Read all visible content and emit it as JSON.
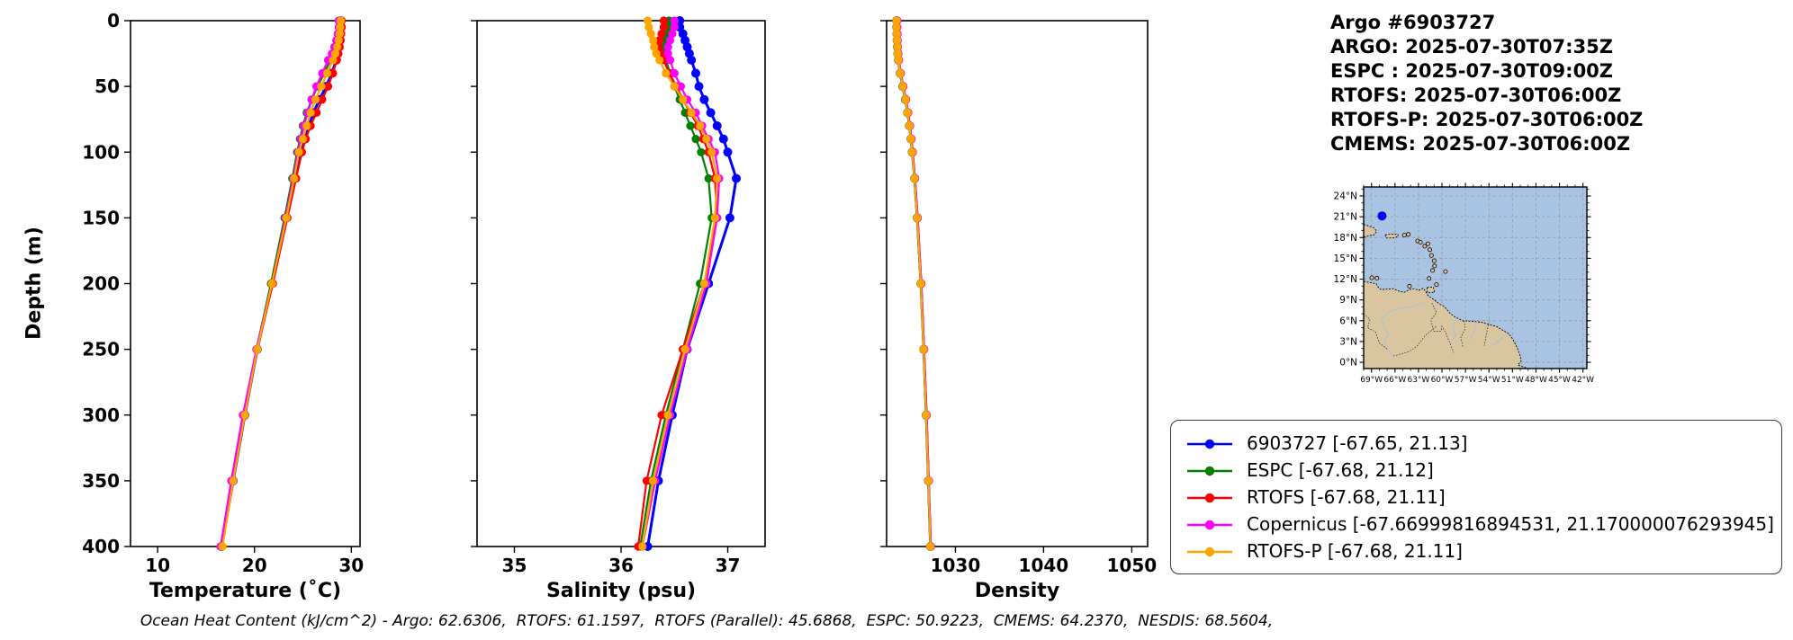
{
  "header": {
    "title": "Argo #6903727",
    "lines": [
      "ARGO: 2025-07-30T07:35Z",
      "ESPC : 2025-07-30T09:00Z",
      "RTOFS: 2025-07-30T06:00Z",
      "RTOFS-P: 2025-07-30T06:00Z",
      "CMEMS: 2025-07-30T06:00Z"
    ]
  },
  "footer": {
    "ohc_text": "Ocean Heat Content (kJ/cm^2) - Argo: 62.6306,  RTOFS: 61.1597,  RTOFS (Parallel): 45.6868,  ESPC: 50.9223,  CMEMS: 64.2370,  NESDIS: 68.5604,"
  },
  "legend": {
    "entries": [
      {
        "label": "6903727 [-67.65, 21.13]",
        "color": "#0000ff"
      },
      {
        "label": "ESPC [-67.68, 21.12]",
        "color": "#008000"
      },
      {
        "label": "RTOFS [-67.68, 21.11]",
        "color": "#ff0000"
      },
      {
        "label": "Copernicus [-67.66999816894531, 21.170000076293945]",
        "color": "#ff00ff"
      },
      {
        "label": "RTOFS-P [-67.68, 21.11]",
        "color": "#ffa500"
      }
    ]
  },
  "chart_data": [
    {
      "type": "line",
      "xlabel": "Temperature (˚C)",
      "ylabel": "Depth (m)",
      "xlim": [
        7.2,
        30.9
      ],
      "ylim": [
        400,
        0
      ],
      "xticks": [
        10,
        20,
        30
      ],
      "yticks": [
        0,
        50,
        100,
        150,
        200,
        250,
        300,
        350,
        400
      ],
      "depths": [
        0,
        5,
        10,
        15,
        20,
        25,
        30,
        40,
        50,
        60,
        70,
        80,
        90,
        100,
        120,
        150,
        200,
        250,
        300,
        350,
        400
      ],
      "series": [
        {
          "name": "6903727",
          "color": "#0000ff",
          "values": [
            28.9,
            28.9,
            28.85,
            28.8,
            28.7,
            28.6,
            28.45,
            28.0,
            27.4,
            26.7,
            26.1,
            25.6,
            25.2,
            24.8,
            24.2,
            23.3,
            21.8,
            20.3,
            19.0,
            17.8,
            16.6
          ]
        },
        {
          "name": "ESPC",
          "color": "#008000",
          "values": [
            28.8,
            28.8,
            28.7,
            28.6,
            28.4,
            28.15,
            27.85,
            27.2,
            26.5,
            25.9,
            25.4,
            25.0,
            24.7,
            24.4,
            23.9,
            23.1,
            21.7,
            20.2,
            18.9,
            17.7,
            16.6
          ]
        },
        {
          "name": "RTOFS",
          "color": "#ff0000",
          "values": [
            29.0,
            29.0,
            28.95,
            28.9,
            28.8,
            28.65,
            28.5,
            28.1,
            27.6,
            27.0,
            26.4,
            25.8,
            25.3,
            24.9,
            24.3,
            23.4,
            21.9,
            20.3,
            19.0,
            17.7,
            16.5
          ]
        },
        {
          "name": "Copernicus",
          "color": "#ff00ff",
          "values": [
            28.7,
            28.7,
            28.6,
            28.45,
            28.25,
            28.0,
            27.6,
            27.0,
            26.4,
            25.9,
            25.5,
            25.1,
            24.8,
            24.5,
            24.0,
            23.2,
            21.8,
            20.2,
            18.8,
            17.6,
            16.5
          ]
        },
        {
          "name": "RTOFS-P",
          "color": "#ffa500",
          "values": [
            28.9,
            28.85,
            28.8,
            28.7,
            28.55,
            28.35,
            28.1,
            27.5,
            26.9,
            26.3,
            25.8,
            25.4,
            25.0,
            24.6,
            24.1,
            23.3,
            21.8,
            20.3,
            19.0,
            17.8,
            16.7
          ]
        }
      ]
    },
    {
      "type": "line",
      "xlabel": "Salinity (psu)",
      "ylabel": "Depth (m)",
      "xlim": [
        34.65,
        37.35
      ],
      "ylim": [
        400,
        0
      ],
      "xticks": [
        35,
        36,
        37
      ],
      "yticks": [
        0,
        50,
        100,
        150,
        200,
        250,
        300,
        350,
        400
      ],
      "depths": [
        0,
        5,
        10,
        15,
        20,
        25,
        30,
        40,
        50,
        60,
        70,
        80,
        90,
        100,
        120,
        150,
        200,
        250,
        300,
        350,
        400
      ],
      "series": [
        {
          "name": "6903727",
          "color": "#0000ff",
          "values": [
            36.55,
            36.55,
            36.58,
            36.6,
            36.62,
            36.64,
            36.66,
            36.7,
            36.73,
            36.78,
            36.84,
            36.9,
            36.96,
            37.0,
            37.08,
            37.02,
            36.82,
            36.62,
            36.48,
            36.35,
            36.25
          ]
        },
        {
          "name": "ESPC",
          "color": "#008000",
          "values": [
            36.45,
            36.45,
            36.44,
            36.42,
            36.4,
            36.4,
            36.42,
            36.46,
            36.5,
            36.55,
            36.6,
            36.65,
            36.7,
            36.75,
            36.82,
            36.85,
            36.74,
            36.58,
            36.42,
            36.28,
            36.18
          ]
        },
        {
          "name": "RTOFS",
          "color": "#ff0000",
          "values": [
            36.4,
            36.4,
            36.38,
            36.36,
            36.35,
            36.37,
            36.4,
            36.45,
            36.52,
            36.58,
            36.65,
            36.72,
            36.77,
            36.82,
            36.88,
            36.9,
            36.78,
            36.58,
            36.38,
            36.24,
            36.16
          ]
        },
        {
          "name": "Copernicus",
          "color": "#ff00ff",
          "values": [
            36.5,
            36.5,
            36.48,
            36.46,
            36.44,
            36.44,
            36.46,
            36.5,
            36.56,
            36.62,
            36.7,
            36.76,
            36.82,
            36.88,
            36.92,
            36.9,
            36.8,
            36.62,
            36.46,
            36.32,
            36.2
          ]
        },
        {
          "name": "RTOFS-P",
          "color": "#ffa500",
          "values": [
            36.25,
            36.26,
            36.28,
            36.3,
            36.31,
            36.33,
            36.36,
            36.42,
            36.5,
            36.58,
            36.66,
            36.74,
            36.8,
            36.85,
            36.9,
            36.88,
            36.78,
            36.6,
            36.44,
            36.3,
            36.2
          ]
        }
      ]
    },
    {
      "type": "line",
      "xlabel": "Density",
      "ylabel": "Depth (m)",
      "xlim": [
        1022.2,
        1051.8
      ],
      "ylim": [
        400,
        0
      ],
      "xticks": [
        1030,
        1040,
        1050
      ],
      "yticks": [
        0,
        50,
        100,
        150,
        200,
        250,
        300,
        350,
        400
      ],
      "depths": [
        0,
        5,
        10,
        15,
        20,
        25,
        30,
        40,
        50,
        60,
        70,
        80,
        90,
        100,
        120,
        150,
        200,
        250,
        300,
        350,
        400
      ],
      "series": [
        {
          "name": "6903727",
          "color": "#0000ff",
          "values": [
            1023.35,
            1023.35,
            1023.38,
            1023.4,
            1023.44,
            1023.48,
            1023.55,
            1023.75,
            1024.05,
            1024.35,
            1024.6,
            1024.8,
            1024.98,
            1025.12,
            1025.38,
            1025.68,
            1026.1,
            1026.42,
            1026.7,
            1026.95,
            1027.18
          ]
        },
        {
          "name": "ESPC",
          "color": "#008000",
          "values": [
            1023.3,
            1023.3,
            1023.33,
            1023.36,
            1023.4,
            1023.45,
            1023.52,
            1023.72,
            1024.0,
            1024.3,
            1024.55,
            1024.75,
            1024.93,
            1025.08,
            1025.34,
            1025.64,
            1026.06,
            1026.38,
            1026.66,
            1026.92,
            1027.15
          ]
        },
        {
          "name": "RTOFS",
          "color": "#ff0000",
          "values": [
            1023.4,
            1023.4,
            1023.42,
            1023.45,
            1023.48,
            1023.52,
            1023.6,
            1023.8,
            1024.1,
            1024.4,
            1024.64,
            1024.84,
            1025.02,
            1025.16,
            1025.42,
            1025.72,
            1026.14,
            1026.45,
            1026.73,
            1026.98,
            1027.2
          ]
        },
        {
          "name": "Copernicus",
          "color": "#ff00ff",
          "values": [
            1023.38,
            1023.38,
            1023.4,
            1023.43,
            1023.47,
            1023.51,
            1023.58,
            1023.78,
            1024.08,
            1024.38,
            1024.62,
            1024.82,
            1025.0,
            1025.14,
            1025.4,
            1025.7,
            1026.12,
            1026.44,
            1026.72,
            1026.97,
            1027.2
          ]
        },
        {
          "name": "RTOFS-P",
          "color": "#ffa500",
          "values": [
            1023.32,
            1023.32,
            1023.35,
            1023.38,
            1023.42,
            1023.46,
            1023.54,
            1023.74,
            1024.04,
            1024.34,
            1024.58,
            1024.78,
            1024.96,
            1025.1,
            1025.36,
            1025.66,
            1026.08,
            1026.4,
            1026.68,
            1026.94,
            1027.16
          ]
        }
      ]
    }
  ],
  "map": {
    "xlim": [
      -70,
      -41.5
    ],
    "ylim": [
      -0.9,
      25.3
    ],
    "xticks": {
      "values": [
        -69,
        -66,
        -63,
        -60,
        -57,
        -54,
        -51,
        -48,
        -45,
        -42
      ],
      "labels": [
        "69°W",
        "66°W",
        "63°W",
        "60°W",
        "57°W",
        "54°W",
        "51°W",
        "48°W",
        "45°W",
        "42°W"
      ]
    },
    "yticks": {
      "values": [
        24,
        21,
        18,
        15,
        12,
        9,
        6,
        3,
        0
      ],
      "labels": [
        "24°N",
        "21°N",
        "18°N",
        "15°N",
        "12°N",
        "9°N",
        "6°N",
        "3°N",
        "0°N"
      ]
    },
    "marker": {
      "lon": -67.65,
      "lat": 21.13,
      "color": "#0000ff"
    },
    "colors": {
      "ocean": "#a9c3e2",
      "land": "#d9c5a0",
      "river": "#aac2d8",
      "border": "#222222",
      "graticule": "#999999"
    },
    "features": {
      "mainland": [
        [
          -70,
          11.7
        ],
        [
          -69.2,
          11.5
        ],
        [
          -68.4,
          11.35
        ],
        [
          -68.2,
          10.9
        ],
        [
          -67.8,
          10.5
        ],
        [
          -67,
          10.55
        ],
        [
          -66.2,
          10.62
        ],
        [
          -65.4,
          10.22
        ],
        [
          -64.8,
          10.1
        ],
        [
          -64.2,
          10.48
        ],
        [
          -63.6,
          10.62
        ],
        [
          -62.9,
          10.4
        ],
        [
          -62.4,
          10.7
        ],
        [
          -62,
          10.08
        ],
        [
          -61.8,
          9.65
        ],
        [
          -61,
          9
        ],
        [
          -60.3,
          8.4
        ],
        [
          -59.7,
          8.05
        ],
        [
          -59,
          7.1
        ],
        [
          -58.4,
          6.6
        ],
        [
          -57.4,
          6
        ],
        [
          -56.6,
          5.95
        ],
        [
          -55.8,
          5.88
        ],
        [
          -54.9,
          5.75
        ],
        [
          -54,
          5.45
        ],
        [
          -53,
          5.15
        ],
        [
          -52.2,
          4.6
        ],
        [
          -51.5,
          4.15
        ],
        [
          -51,
          3.4
        ],
        [
          -50.4,
          2.1
        ],
        [
          -50,
          0.9
        ],
        [
          -49.9,
          0.2
        ],
        [
          -50.3,
          -0.4
        ],
        [
          -49,
          -0.9
        ],
        [
          -70,
          -0.9
        ]
      ],
      "islands_poly": [
        [
          [
            -70,
            19.9
          ],
          [
            -69.3,
            19.65
          ],
          [
            -68.7,
            19.4
          ],
          [
            -68.35,
            18.95
          ],
          [
            -68.65,
            18.4
          ],
          [
            -69.3,
            18.3
          ],
          [
            -69.8,
            18.05
          ],
          [
            -70,
            18.2
          ]
        ],
        [
          [
            -67.25,
            18.4
          ],
          [
            -66.5,
            18.5
          ],
          [
            -65.65,
            18.45
          ],
          [
            -65.6,
            18.15
          ],
          [
            -66.2,
            17.95
          ],
          [
            -67.15,
            17.95
          ]
        ],
        [
          [
            -61.9,
            10.8
          ],
          [
            -61.1,
            10.85
          ],
          [
            -60.95,
            10.1
          ],
          [
            -61.85,
            10.05
          ]
        ]
      ],
      "islets": [
        [
          -68.95,
          12.2
        ],
        [
          -68.3,
          12.15
        ],
        [
          -64.15,
          10.98
        ],
        [
          -63.1,
          17.5
        ],
        [
          -62.75,
          17.32
        ],
        [
          -62.2,
          16.75
        ],
        [
          -61.8,
          17.1
        ],
        [
          -61.55,
          16.25
        ],
        [
          -61.35,
          15.42
        ],
        [
          -61.0,
          14.65
        ],
        [
          -60.95,
          13.9
        ],
        [
          -61.2,
          13.25
        ],
        [
          -61.65,
          12.1
        ],
        [
          -59.55,
          13.1
        ],
        [
          -64.8,
          18.35
        ],
        [
          -64.3,
          18.45
        ],
        [
          -60.7,
          11.22
        ]
      ],
      "rivers": [
        [
          [
            -62.3,
            8.6
          ],
          [
            -63.6,
            8.05
          ],
          [
            -65.2,
            7.85
          ],
          [
            -66.8,
            7.3
          ],
          [
            -67.7,
            6.2
          ],
          [
            -67.4,
            5.1
          ],
          [
            -66.8,
            4.1
          ],
          [
            -67.4,
            3.0
          ],
          [
            -67.0,
            1.9
          ],
          [
            -66.2,
            0.9
          ]
        ],
        [
          [
            -58.2,
            6.4
          ],
          [
            -58.6,
            5.2
          ],
          [
            -58.3,
            3.8
          ],
          [
            -59.0,
            2.6
          ]
        ],
        [
          [
            -51.8,
            4.2
          ],
          [
            -52.6,
            3.2
          ],
          [
            -53.6,
            2.4
          ]
        ],
        [
          [
            -55.6,
            5.6
          ],
          [
            -55.9,
            4.4
          ],
          [
            -56.4,
            3.2
          ]
        ]
      ],
      "borders": [
        [
          [
            -61.3,
            8.55
          ],
          [
            -60.7,
            7.2
          ],
          [
            -61.4,
            6.1
          ],
          [
            -61.1,
            4.5
          ],
          [
            -60.1,
            4.5
          ],
          [
            -60.0,
            5.2
          ],
          [
            -59.5,
            4.2
          ],
          [
            -58.5,
            1.4
          ]
        ],
        [
          [
            -57.2,
            6.0
          ],
          [
            -57.0,
            4.9
          ],
          [
            -57.6,
            3.6
          ],
          [
            -57.3,
            2.1
          ]
        ],
        [
          [
            -54.1,
            5.4
          ],
          [
            -54.3,
            4.2
          ],
          [
            -54.6,
            2.4
          ]
        ],
        [
          [
            -66.2,
            0.9
          ],
          [
            -64.3,
            1.5
          ],
          [
            -63.2,
            2.3
          ],
          [
            -62.1,
            3.9
          ],
          [
            -60.7,
            5.2
          ]
        ],
        [
          [
            -70,
            7.0
          ],
          [
            -69.2,
            6.2
          ],
          [
            -69.5,
            5.0
          ],
          [
            -68.5,
            4.4
          ],
          [
            -68.0,
            2.8
          ],
          [
            -67.0,
            1.9
          ]
        ]
      ]
    }
  }
}
